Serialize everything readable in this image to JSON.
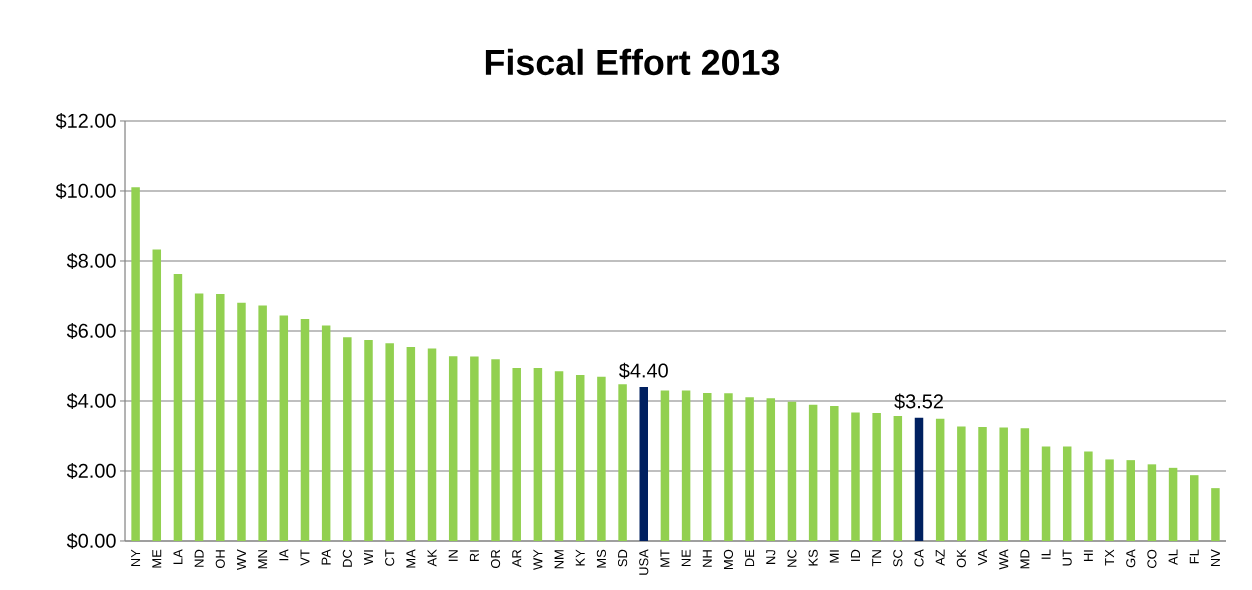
{
  "chart_data": {
    "type": "bar",
    "title": "Fiscal Effort 2013",
    "categories": [
      "NY",
      "ME",
      "LA",
      "ND",
      "OH",
      "WV",
      "MN",
      "IA",
      "VT",
      "PA",
      "DC",
      "WI",
      "CT",
      "MA",
      "AK",
      "IN",
      "RI",
      "OR",
      "AR",
      "WY",
      "NM",
      "KY",
      "MS",
      "SD",
      "USA",
      "MT",
      "NE",
      "NH",
      "MO",
      "DE",
      "NJ",
      "NC",
      "KS",
      "MI",
      "ID",
      "TN",
      "SC",
      "CA",
      "AZ",
      "OK",
      "VA",
      "WA",
      "MD",
      "IL",
      "UT",
      "HI",
      "TX",
      "GA",
      "CO",
      "AL",
      "FL",
      "NV"
    ],
    "values": [
      10.11,
      8.33,
      7.63,
      7.07,
      7.06,
      6.81,
      6.73,
      6.44,
      6.34,
      6.16,
      5.82,
      5.74,
      5.65,
      5.54,
      5.5,
      5.28,
      5.27,
      5.19,
      4.94,
      4.94,
      4.85,
      4.74,
      4.69,
      4.48,
      4.4,
      4.3,
      4.3,
      4.23,
      4.22,
      4.11,
      4.08,
      3.98,
      3.89,
      3.86,
      3.67,
      3.66,
      3.57,
      3.52,
      3.49,
      3.27,
      3.26,
      3.24,
      3.22,
      2.7,
      2.7,
      2.56,
      2.33,
      2.31,
      2.19,
      2.09,
      1.88,
      1.51
    ],
    "colors": [
      "#92d050",
      "#92d050",
      "#92d050",
      "#92d050",
      "#92d050",
      "#92d050",
      "#92d050",
      "#92d050",
      "#92d050",
      "#92d050",
      "#92d050",
      "#92d050",
      "#92d050",
      "#92d050",
      "#92d050",
      "#92d050",
      "#92d050",
      "#92d050",
      "#92d050",
      "#92d050",
      "#92d050",
      "#92d050",
      "#92d050",
      "#92d050",
      "#002060",
      "#92d050",
      "#92d050",
      "#92d050",
      "#92d050",
      "#92d050",
      "#92d050",
      "#92d050",
      "#92d050",
      "#92d050",
      "#92d050",
      "#92d050",
      "#92d050",
      "#002060",
      "#92d050",
      "#92d050",
      "#92d050",
      "#92d050",
      "#92d050",
      "#92d050",
      "#92d050",
      "#92d050",
      "#92d050",
      "#92d050",
      "#92d050",
      "#92d050",
      "#92d050",
      "#92d050"
    ],
    "value_labels": [
      null,
      null,
      null,
      null,
      null,
      null,
      null,
      null,
      null,
      null,
      null,
      null,
      null,
      null,
      null,
      null,
      null,
      null,
      null,
      null,
      null,
      null,
      null,
      null,
      "$4.40",
      null,
      null,
      null,
      null,
      null,
      null,
      null,
      null,
      null,
      null,
      null,
      null,
      "$3.52",
      null,
      null,
      null,
      null,
      null,
      null,
      null,
      null,
      null,
      null,
      null,
      null,
      null,
      null
    ],
    "ylim": [
      0,
      12
    ],
    "yticks": [
      {
        "value": 0,
        "label": "$0.00"
      },
      {
        "value": 2,
        "label": "$2.00"
      },
      {
        "value": 4,
        "label": "$4.00"
      },
      {
        "value": 6,
        "label": "$6.00"
      },
      {
        "value": 8,
        "label": "$8.00"
      },
      {
        "value": 10,
        "label": "$10.00"
      },
      {
        "value": 12,
        "label": "$12.00"
      }
    ],
    "grid": "y"
  }
}
